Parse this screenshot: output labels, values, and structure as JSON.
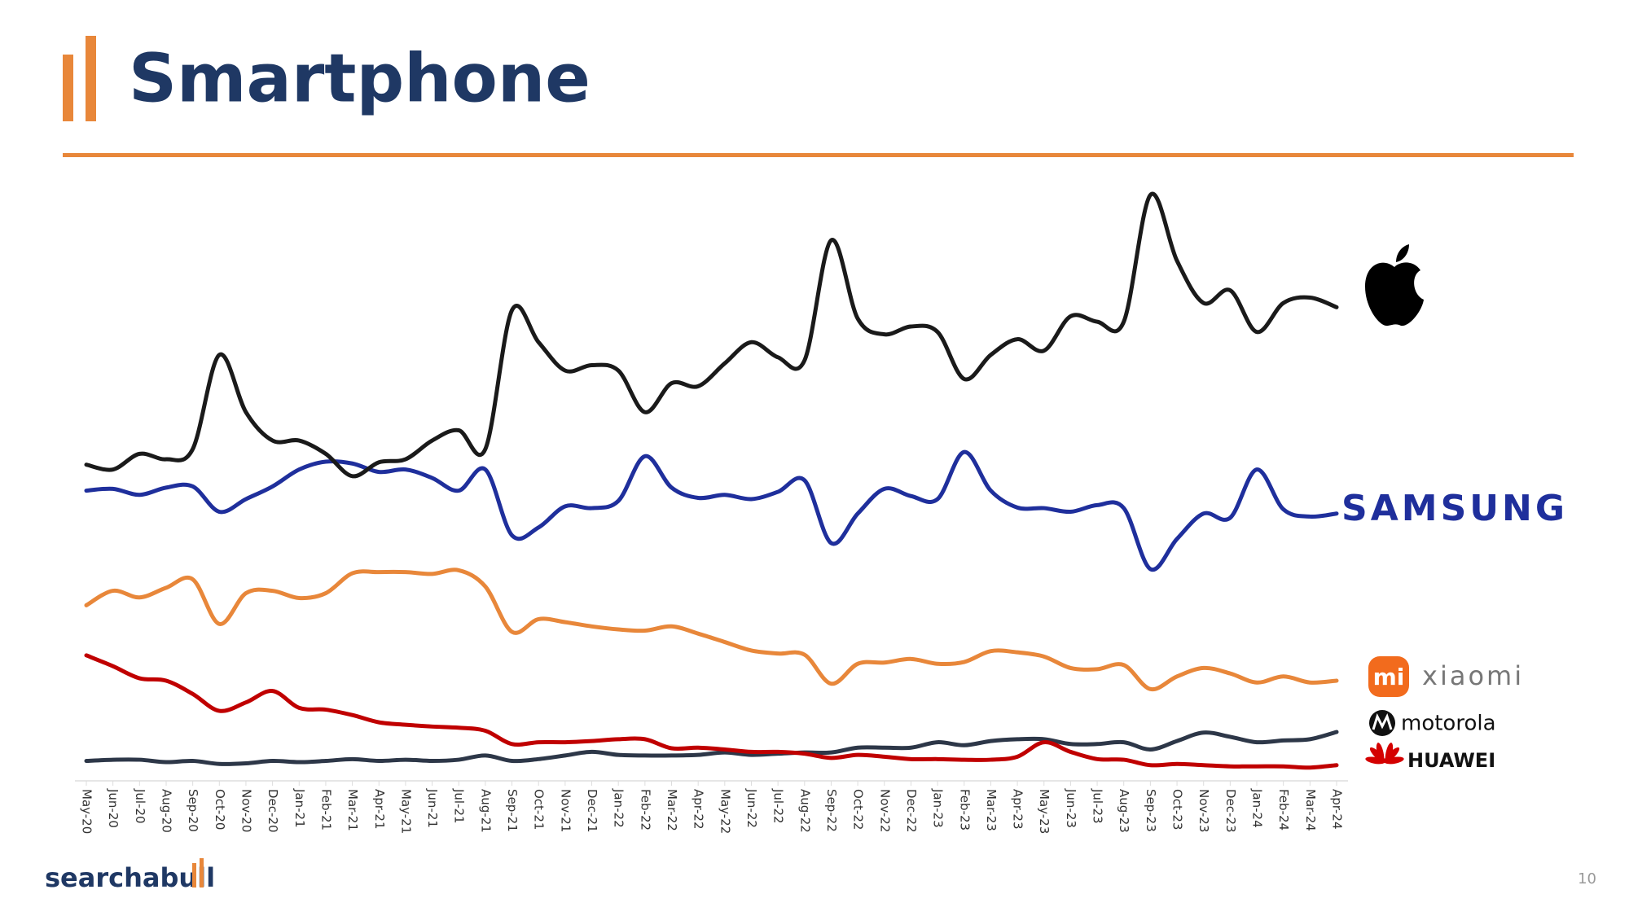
{
  "title": "Smartphone",
  "footer": {
    "brand": "searchabull",
    "page_number": "10"
  },
  "chart_data": {
    "type": "line",
    "categories": [
      "May-20",
      "Jun-20",
      "Jul-20",
      "Aug-20",
      "Sep-20",
      "Oct-20",
      "Nov-20",
      "Dec-20",
      "Jan-21",
      "Feb-21",
      "Mar-21",
      "Apr-21",
      "May-21",
      "Jun-21",
      "Jul-21",
      "Aug-21",
      "Sep-21",
      "Oct-21",
      "Nov-21",
      "Dec-21",
      "Jan-22",
      "Feb-22",
      "Mar-22",
      "Apr-22",
      "May-22",
      "Jun-22",
      "Jul-22",
      "Aug-22",
      "Sep-22",
      "Oct-22",
      "Nov-22",
      "Dec-22",
      "Jan-23",
      "Feb-23",
      "Mar-23",
      "Apr-23",
      "May-23",
      "Jun-23",
      "Jul-23",
      "Aug-23",
      "Sep-23",
      "Oct-23",
      "Nov-23",
      "Dec-23",
      "Jan-24",
      "Feb-24",
      "Mar-24",
      "Apr-24"
    ],
    "ylim": [
      0,
      100
    ],
    "series": [
      {
        "color": "#1a1a1a",
        "values": [
          52.4,
          51.6,
          54.2,
          53.3,
          55.0,
          70.6,
          61.1,
          56.4,
          56.4,
          54.2,
          50.5,
          52.8,
          53.3,
          56.4,
          58.1,
          55.0,
          78.0,
          72.7,
          68.0,
          68.9,
          68.0,
          61.1,
          65.9,
          65.4,
          69.2,
          72.7,
          70.2,
          69.7,
          89.6,
          76.6,
          74.0,
          75.3,
          74.4,
          66.6,
          70.6,
          73.2,
          71.3,
          77.0,
          76.1,
          76.1,
          97.1,
          86.2,
          79.2,
          81.3,
          74.4,
          79.2,
          80.1,
          78.5
        ]
      },
      {
        "name": "SAMSUNG",
        "color": "#1f2f9c",
        "values": [
          48.1,
          48.4,
          47.4,
          48.6,
          48.8,
          44.6,
          46.7,
          48.8,
          51.6,
          52.9,
          52.6,
          51.2,
          51.6,
          50.2,
          48.1,
          51.6,
          40.7,
          42.0,
          45.5,
          45.2,
          46.4,
          53.8,
          48.6,
          46.9,
          47.4,
          46.7,
          47.9,
          49.8,
          39.4,
          44.3,
          48.4,
          47.2,
          46.7,
          54.5,
          48.1,
          45.3,
          45.2,
          44.6,
          45.7,
          45.2,
          35.1,
          40.1,
          44.3,
          43.6,
          51.6,
          45.0,
          43.8,
          44.3
        ]
      },
      {
        "name": "xiaomi",
        "badge": "mi",
        "color": "#e8873a",
        "values": [
          29.1,
          31.5,
          30.4,
          32.0,
          33.4,
          26.0,
          31.1,
          31.5,
          30.3,
          31.1,
          34.4,
          34.6,
          34.6,
          34.3,
          34.9,
          32.2,
          24.7,
          26.8,
          26.3,
          25.6,
          25.1,
          24.9,
          25.6,
          24.4,
          23.0,
          21.6,
          21.1,
          20.9,
          16.1,
          19.4,
          19.6,
          20.2,
          19.4,
          19.7,
          21.5,
          21.3,
          20.6,
          18.7,
          18.5,
          19.2,
          15.2,
          17.3,
          18.7,
          17.8,
          16.3,
          17.3,
          16.3,
          16.6
        ]
      },
      {
        "name": "HUAWEI",
        "color": "#c00000",
        "values": [
          20.8,
          19.0,
          17.0,
          16.6,
          14.4,
          11.6,
          13.0,
          14.9,
          12.1,
          11.8,
          10.9,
          9.7,
          9.3,
          9.0,
          8.8,
          8.3,
          6.1,
          6.4,
          6.4,
          6.6,
          6.9,
          6.9,
          5.4,
          5.5,
          5.2,
          4.8,
          4.8,
          4.5,
          3.8,
          4.3,
          4.0,
          3.6,
          3.6,
          3.5,
          3.5,
          4.0,
          6.4,
          4.8,
          3.6,
          3.5,
          2.6,
          2.8,
          2.6,
          2.4,
          2.4,
          2.4,
          2.2,
          2.6
        ]
      },
      {
        "name": "motorola",
        "color": "#2d3748",
        "values": [
          3.3,
          3.5,
          3.5,
          3.1,
          3.3,
          2.8,
          2.9,
          3.3,
          3.1,
          3.3,
          3.6,
          3.3,
          3.5,
          3.3,
          3.5,
          4.2,
          3.3,
          3.6,
          4.2,
          4.8,
          4.3,
          4.2,
          4.2,
          4.3,
          4.7,
          4.3,
          4.5,
          4.7,
          4.7,
          5.5,
          5.5,
          5.5,
          6.4,
          5.9,
          6.6,
          6.9,
          6.9,
          6.1,
          6.1,
          6.4,
          5.2,
          6.6,
          8.0,
          7.3,
          6.4,
          6.7,
          6.9,
          8.1
        ]
      }
    ]
  }
}
